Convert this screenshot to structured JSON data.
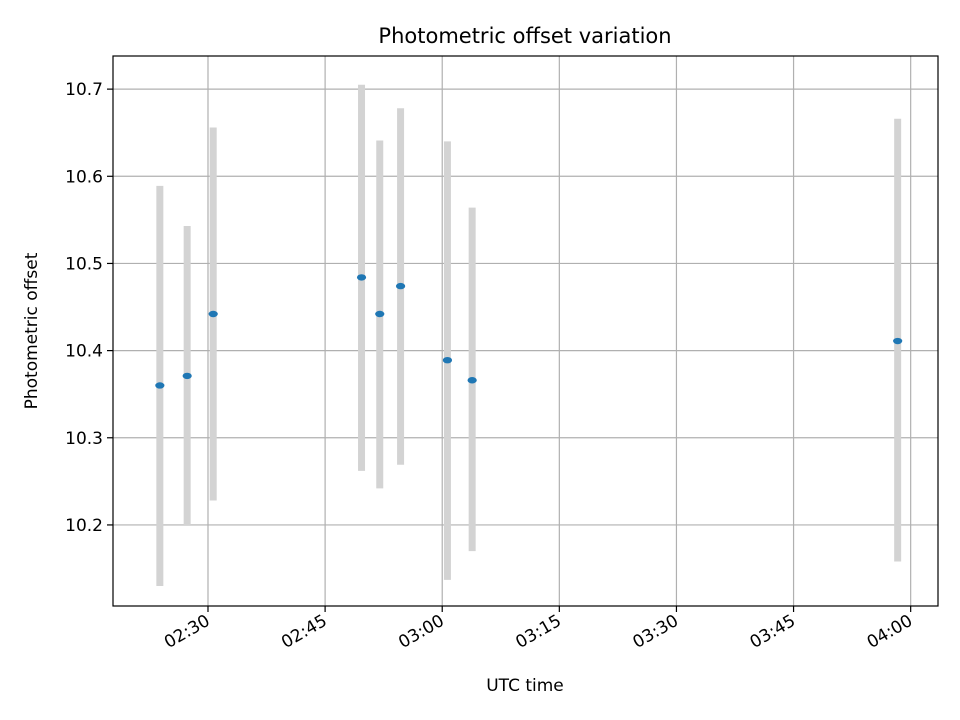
{
  "chart_data": {
    "type": "scatter",
    "title": "Photometric offset variation",
    "xlabel": "UTC time",
    "ylabel": "Photometric offset",
    "xlim": [
      "02:17:50",
      "04:03:30"
    ],
    "ylim": [
      10.107,
      10.738
    ],
    "x_ticks": [
      "02:30",
      "02:45",
      "03:00",
      "03:15",
      "03:30",
      "03:45",
      "04:00"
    ],
    "y_ticks": [
      "10.2",
      "10.3",
      "10.4",
      "10.5",
      "10.6",
      "10.7"
    ],
    "grid": true,
    "colors": {
      "points": "#1f77b4",
      "errorbars": "#d3d3d3"
    },
    "points": [
      {
        "t": "02:23:50",
        "y": 10.36,
        "ylow": 10.13,
        "yhigh": 10.589
      },
      {
        "t": "02:27:20",
        "y": 10.371,
        "ylow": 10.2,
        "yhigh": 10.543
      },
      {
        "t": "02:30:40",
        "y": 10.442,
        "ylow": 10.228,
        "yhigh": 10.656
      },
      {
        "t": "02:49:40",
        "y": 10.484,
        "ylow": 10.262,
        "yhigh": 10.705
      },
      {
        "t": "02:52:00",
        "y": 10.442,
        "ylow": 10.242,
        "yhigh": 10.641
      },
      {
        "t": "02:54:40",
        "y": 10.474,
        "ylow": 10.269,
        "yhigh": 10.678
      },
      {
        "t": "03:00:40",
        "y": 10.389,
        "ylow": 10.137,
        "yhigh": 10.64
      },
      {
        "t": "03:03:50",
        "y": 10.366,
        "ylow": 10.17,
        "yhigh": 10.564
      },
      {
        "t": "03:58:20",
        "y": 10.411,
        "ylow": 10.158,
        "yhigh": 10.666
      }
    ]
  }
}
